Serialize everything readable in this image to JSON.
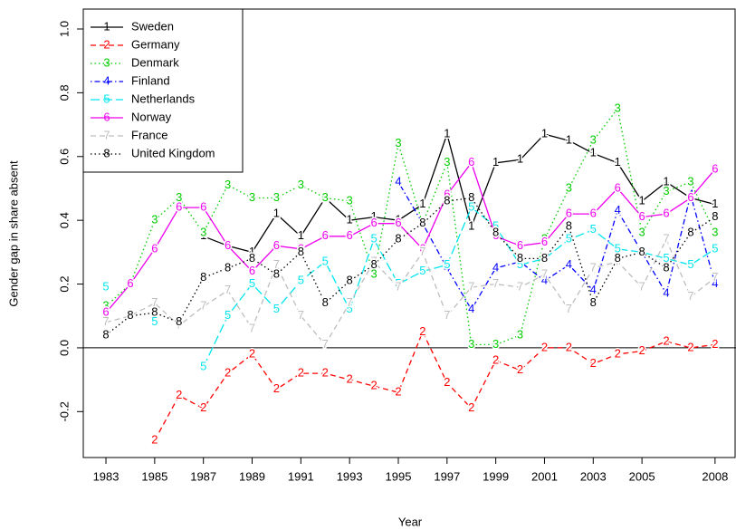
{
  "chart_data": {
    "type": "line",
    "x_label": "Year",
    "y_label": "Gender gap in share absent",
    "x": [
      1983,
      1984,
      1985,
      1986,
      1987,
      1988,
      1989,
      1990,
      1991,
      1992,
      1993,
      1994,
      1995,
      1996,
      1997,
      1998,
      1999,
      2000,
      2001,
      2002,
      2003,
      2004,
      2005,
      2006,
      2007,
      2008
    ],
    "xlim": [
      1982.07,
      2008.86
    ],
    "xticks": [
      1983,
      1985,
      1987,
      1989,
      1991,
      1993,
      1995,
      1997,
      1999,
      2001,
      2003,
      2005,
      2008
    ],
    "ylim": [
      -0.344,
      1.0625
    ],
    "yticks": [
      -0.2,
      {
        "value": 0,
        "label": "0.0"
      },
      0.2,
      0.4,
      0.6,
      0.8,
      {
        "value": 1,
        "label": "1.0"
      }
    ],
    "reference_line": 0,
    "legend": "topleft",
    "series": [
      {
        "name": "Sweden",
        "marker": "1",
        "color": "#000000",
        "linestyle": "solid",
        "values": [
          null,
          null,
          null,
          null,
          0.35,
          0.32,
          0.3,
          0.42,
          0.35,
          0.47,
          0.4,
          0.41,
          0.4,
          0.45,
          0.67,
          0.38,
          0.58,
          0.59,
          0.67,
          0.65,
          0.61,
          0.58,
          0.46,
          0.52,
          0.47,
          0.45
        ]
      },
      {
        "name": "Germany",
        "marker": "2",
        "color": "#ff0000",
        "linestyle": "dashed",
        "values": [
          null,
          null,
          -0.29,
          -0.15,
          -0.19,
          -0.08,
          -0.02,
          -0.13,
          -0.08,
          -0.08,
          -0.1,
          -0.12,
          -0.14,
          0.05,
          -0.11,
          -0.19,
          -0.04,
          -0.07,
          0.0,
          0.0,
          -0.05,
          -0.02,
          -0.01,
          0.02,
          0.0,
          0.01
        ]
      },
      {
        "name": "Denmark",
        "marker": "3",
        "color": "#00cd00",
        "linestyle": "dotted",
        "values": [
          0.13,
          0.2,
          0.4,
          0.47,
          0.36,
          0.51,
          0.47,
          0.47,
          0.51,
          0.47,
          0.46,
          0.23,
          0.64,
          0.39,
          0.58,
          0.01,
          0.01,
          0.04,
          0.34,
          0.5,
          0.65,
          0.75,
          0.36,
          0.49,
          0.52,
          0.36
        ]
      },
      {
        "name": "Finland",
        "marker": "4",
        "color": "#0000ff",
        "linestyle": "dashdot",
        "values": [
          null,
          null,
          null,
          null,
          null,
          null,
          null,
          null,
          null,
          null,
          null,
          null,
          0.52,
          0.39,
          0.25,
          0.12,
          0.25,
          0.27,
          0.21,
          0.26,
          0.18,
          0.43,
          0.3,
          0.17,
          0.48,
          0.2
        ]
      },
      {
        "name": "Netherlands",
        "marker": "5",
        "color": "#00e5ee",
        "linestyle": "longdash",
        "values": [
          0.19,
          null,
          0.08,
          null,
          -0.06,
          0.1,
          0.2,
          0.12,
          0.21,
          0.27,
          0.12,
          0.34,
          0.2,
          0.24,
          0.26,
          0.44,
          0.38,
          0.26,
          0.28,
          0.34,
          0.37,
          0.31,
          0.3,
          0.28,
          0.26,
          0.31
        ]
      },
      {
        "name": "Norway",
        "marker": "6",
        "color": "#ee00ee",
        "linestyle": "solid",
        "values": [
          0.11,
          0.2,
          0.31,
          0.44,
          0.44,
          0.32,
          0.24,
          0.32,
          0.31,
          0.35,
          0.35,
          0.39,
          0.39,
          0.31,
          0.48,
          0.58,
          0.35,
          0.32,
          0.33,
          0.42,
          0.42,
          0.5,
          0.41,
          0.42,
          0.47,
          0.56
        ]
      },
      {
        "name": "France",
        "marker": "7",
        "color": "#bebebe",
        "linestyle": "dashed",
        "values": [
          0.08,
          0.1,
          0.14,
          0.07,
          0.13,
          0.18,
          0.06,
          0.26,
          0.1,
          0.01,
          0.14,
          0.27,
          0.19,
          0.3,
          0.1,
          0.19,
          0.2,
          0.19,
          0.23,
          0.12,
          0.25,
          0.27,
          0.19,
          0.34,
          0.16,
          0.22
        ]
      },
      {
        "name": "United Kingdom",
        "marker": "8",
        "color": "#000000",
        "linestyle": "dotted",
        "values": [
          0.04,
          0.1,
          0.11,
          0.08,
          0.22,
          0.25,
          0.28,
          0.23,
          0.3,
          0.14,
          0.21,
          0.26,
          0.34,
          0.39,
          0.46,
          0.47,
          0.36,
          0.28,
          0.28,
          0.38,
          0.14,
          0.28,
          0.3,
          0.25,
          0.36,
          0.41
        ]
      }
    ]
  }
}
